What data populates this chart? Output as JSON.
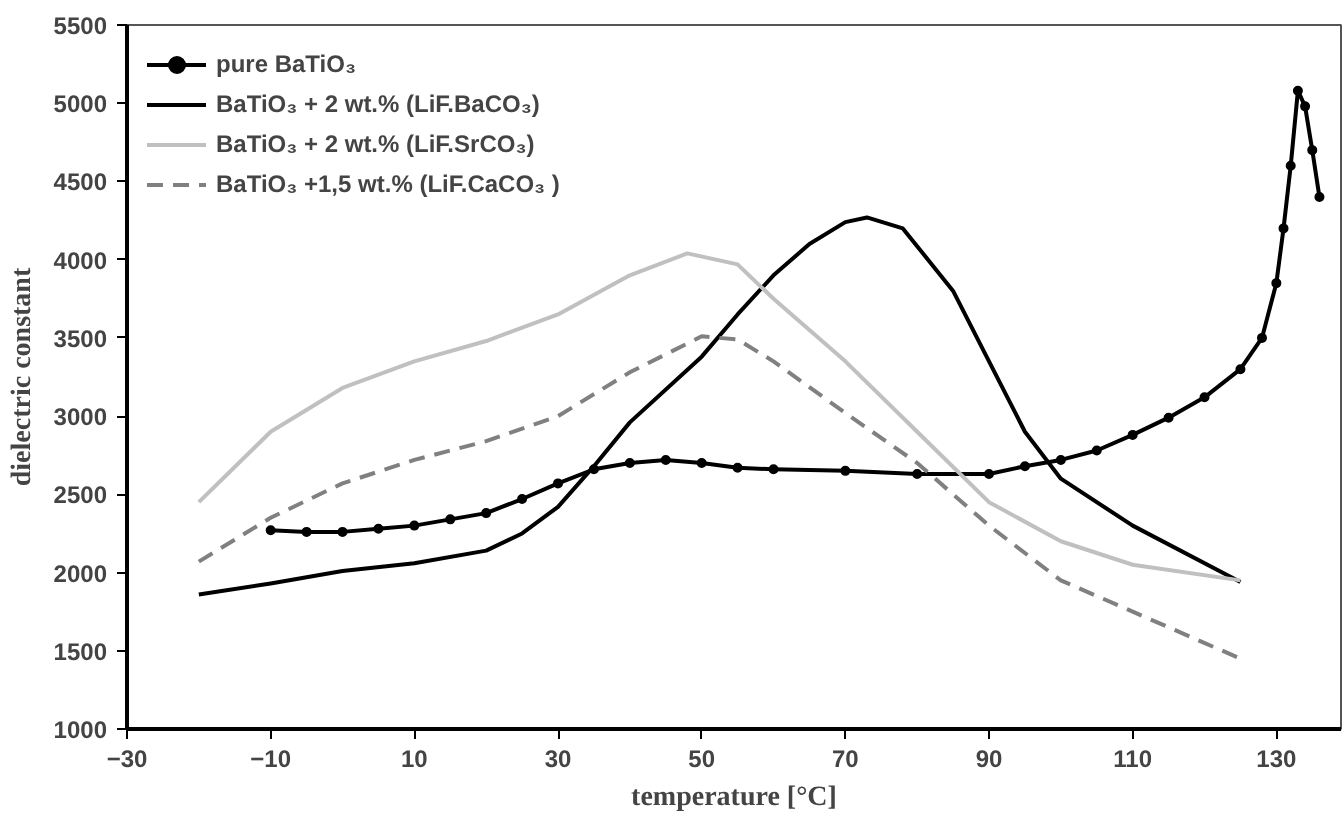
{
  "chart_data": {
    "type": "line",
    "xlabel": "temperature [°C]",
    "ylabel": "dielectric constant",
    "xlim": [
      -30,
      139
    ],
    "ylim": [
      1000,
      5500
    ],
    "xticks": [
      -30,
      -10,
      10,
      30,
      50,
      70,
      90,
      110,
      130
    ],
    "yticks": [
      1000,
      1500,
      2000,
      2500,
      3000,
      3500,
      4000,
      4500,
      5000,
      5500
    ],
    "grid": false,
    "legend": "top left",
    "series": [
      {
        "name": "pure BaTiO₃",
        "color": "#000000",
        "marker": "circle",
        "line_style": "solid",
        "x": [
          -10,
          -5,
          0,
          5,
          10,
          15,
          20,
          25,
          30,
          35,
          40,
          45,
          50,
          55,
          60,
          70,
          80,
          90,
          95,
          100,
          105,
          110,
          115,
          120,
          125,
          128,
          130,
          131,
          132,
          133,
          134,
          135,
          136
        ],
        "values": [
          2270,
          2260,
          2260,
          2280,
          2300,
          2340,
          2380,
          2470,
          2570,
          2660,
          2700,
          2720,
          2700,
          2670,
          2660,
          2650,
          2630,
          2630,
          2680,
          2720,
          2780,
          2880,
          2990,
          3120,
          3300,
          3500,
          3850,
          4200,
          4600,
          5080,
          4980,
          4700,
          4400
        ]
      },
      {
        "name": "BaTiO₃ + 2 wt.% (LiF.BaCO₃)",
        "color": "#000000",
        "marker": "none",
        "line_style": "solid",
        "x": [
          -20,
          -10,
          0,
          10,
          20,
          25,
          30,
          35,
          40,
          50,
          55,
          60,
          65,
          70,
          73,
          78,
          85,
          90,
          95,
          100,
          110,
          125
        ],
        "values": [
          1860,
          1930,
          2010,
          2060,
          2140,
          2250,
          2420,
          2680,
          2960,
          3380,
          3650,
          3900,
          4100,
          4240,
          4270,
          4200,
          3800,
          3350,
          2900,
          2600,
          2300,
          1940
        ]
      },
      {
        "name": "BaTiO₃ + 2 wt.% (LiF.SrCO₃)",
        "color": "#c0c0c0",
        "marker": "none",
        "line_style": "solid",
        "x": [
          -20,
          -10,
          0,
          10,
          20,
          30,
          40,
          48,
          55,
          60,
          70,
          80,
          90,
          100,
          110,
          125
        ],
        "values": [
          2450,
          2900,
          3180,
          3350,
          3480,
          3650,
          3900,
          4040,
          3970,
          3750,
          3350,
          2900,
          2450,
          2200,
          2050,
          1950
        ]
      },
      {
        "name": "BaTiO₃ +1,5 wt.% (LiF.CaCO₃ )",
        "color": "#808080",
        "marker": "none",
        "line_style": "dashed",
        "x": [
          -20,
          -10,
          0,
          10,
          20,
          30,
          40,
          50,
          55,
          60,
          70,
          80,
          90,
          100,
          110,
          125
        ],
        "values": [
          2070,
          2350,
          2570,
          2720,
          2840,
          3000,
          3280,
          3510,
          3490,
          3350,
          3020,
          2700,
          2300,
          1950,
          1750,
          1450
        ]
      }
    ]
  }
}
